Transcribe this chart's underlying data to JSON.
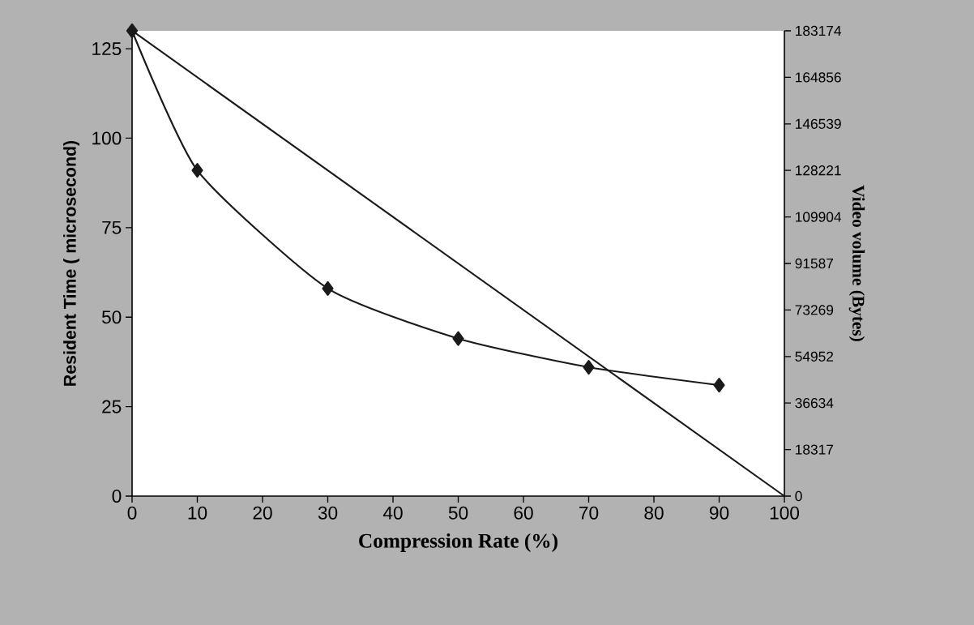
{
  "chart_data": {
    "type": "line",
    "xlabel": "Compression Rate (%)",
    "ylabel": "Resident Time ( microsecond)",
    "y2label": "Video volume (Bytes)",
    "xlim": [
      0,
      100
    ],
    "xticks": [
      0,
      10,
      20,
      30,
      40,
      50,
      60,
      70,
      80,
      90,
      100
    ],
    "ylim": [
      0,
      130
    ],
    "yticks": [
      0,
      25,
      50,
      75,
      100,
      125
    ],
    "y2lim": [
      0,
      183174
    ],
    "y2ticks": [
      0,
      18317,
      36634,
      54952,
      73269,
      91587,
      109904,
      128221,
      146539,
      164856,
      183174
    ],
    "grid": false,
    "series": [
      {
        "color": "#1a1a1a",
        "marker": "diamond",
        "x": [
          0,
          10,
          30,
          50,
          70,
          90
        ],
        "values": [
          130,
          91,
          58,
          44,
          36,
          31
        ]
      },
      {
        "color": "#1a1a1a",
        "marker": "none",
        "axis": "y2",
        "x": [
          0,
          100
        ],
        "values": [
          183174,
          0
        ]
      }
    ]
  }
}
